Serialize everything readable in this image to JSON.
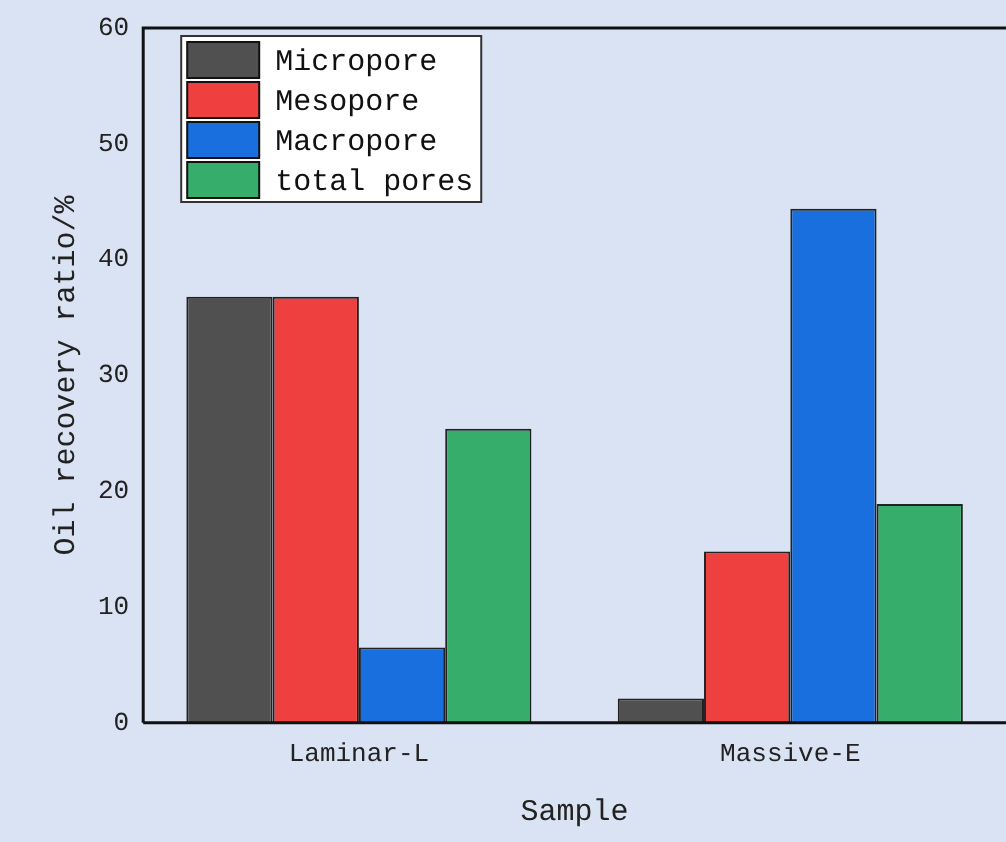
{
  "chart_data": {
    "type": "bar",
    "xlabel": "Sample",
    "ylabel": "Oil recovery ratio/%",
    "categories": [
      "Laminar-L",
      "Massive-E"
    ],
    "series": [
      {
        "name": "Micropore",
        "color": "#505050",
        "values": [
          36.8,
          2.1
        ]
      },
      {
        "name": "Mesopore",
        "color": "#ef4040",
        "values": [
          36.8,
          14.8
        ]
      },
      {
        "name": "Macropore",
        "color": "#1a6fdf",
        "values": [
          6.5,
          44.4
        ]
      },
      {
        "name": "total pores",
        "color": "#37ad6b",
        "values": [
          25.4,
          18.9
        ]
      }
    ],
    "ylim": [
      0,
      60
    ],
    "yticks": [
      0,
      10,
      20,
      30,
      40,
      50,
      60
    ],
    "grid": false,
    "legend": "top left"
  }
}
